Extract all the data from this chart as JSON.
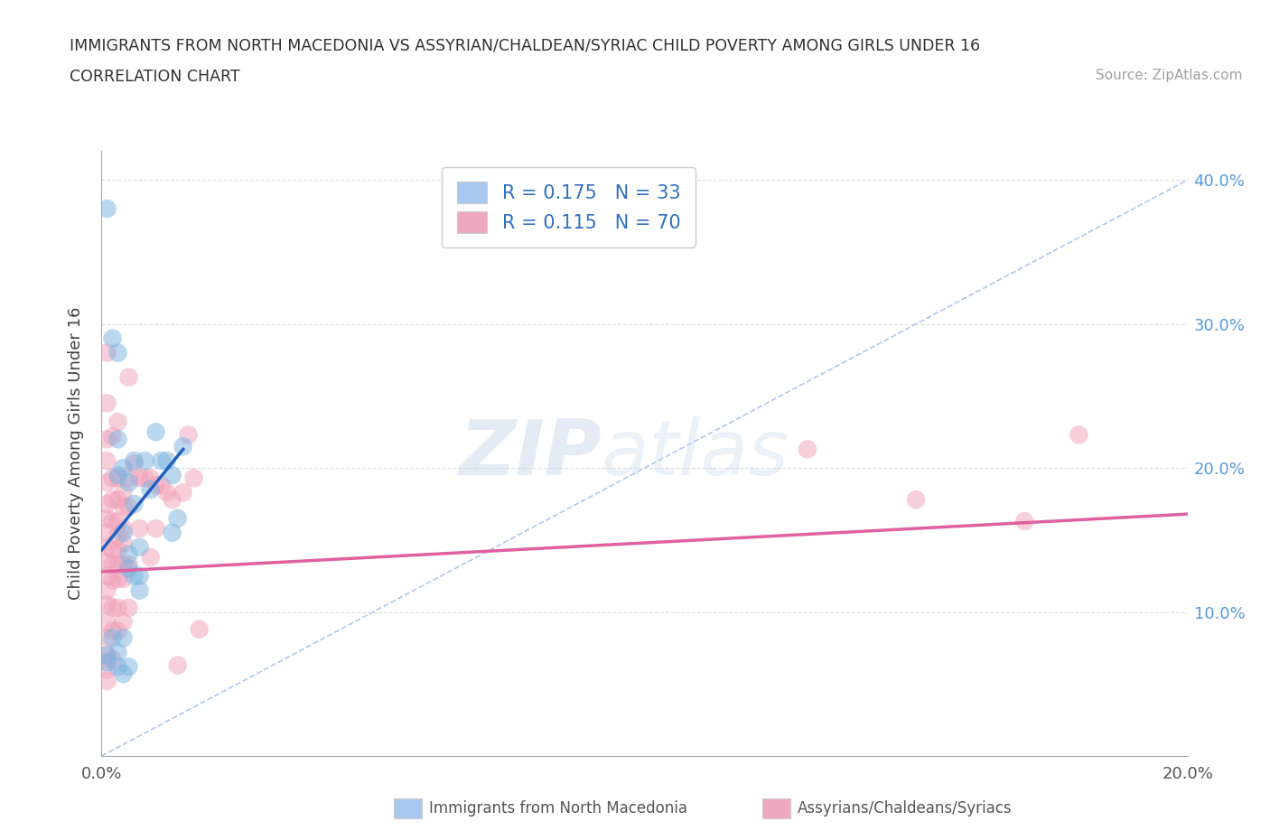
{
  "title": "IMMIGRANTS FROM NORTH MACEDONIA VS ASSYRIAN/CHALDEAN/SYRIAC CHILD POVERTY AMONG GIRLS UNDER 16",
  "subtitle": "CORRELATION CHART",
  "source": "Source: ZipAtlas.com",
  "ylabel": "Child Poverty Among Girls Under 16",
  "xlim": [
    0.0,
    0.2
  ],
  "ylim": [
    0.0,
    0.42
  ],
  "xticks": [
    0.0,
    0.025,
    0.05,
    0.075,
    0.1,
    0.125,
    0.15,
    0.175,
    0.2
  ],
  "xticklabels_show": [
    "0.0%",
    "",
    "",
    "",
    "",
    "",
    "",
    "",
    "20.0%"
  ],
  "yticks": [
    0.0,
    0.1,
    0.2,
    0.3,
    0.4
  ],
  "yticklabels_right": [
    "",
    "10.0%",
    "20.0%",
    "30.0%",
    "40.0%"
  ],
  "watermark_zip": "ZIP",
  "watermark_atlas": "atlas",
  "legend_items": [
    {
      "label": "R = 0.175   N = 33",
      "color": "#a8c8f0"
    },
    {
      "label": "R = 0.115   N = 70",
      "color": "#f0a8c0"
    }
  ],
  "blue_scatter": [
    [
      0.001,
      0.38
    ],
    [
      0.002,
      0.29
    ],
    [
      0.003,
      0.28
    ],
    [
      0.003,
      0.22
    ],
    [
      0.003,
      0.195
    ],
    [
      0.004,
      0.2
    ],
    [
      0.004,
      0.155
    ],
    [
      0.005,
      0.19
    ],
    [
      0.005,
      0.14
    ],
    [
      0.005,
      0.13
    ],
    [
      0.006,
      0.205
    ],
    [
      0.006,
      0.175
    ],
    [
      0.006,
      0.125
    ],
    [
      0.007,
      0.145
    ],
    [
      0.007,
      0.125
    ],
    [
      0.007,
      0.115
    ],
    [
      0.008,
      0.205
    ],
    [
      0.009,
      0.185
    ],
    [
      0.01,
      0.225
    ],
    [
      0.011,
      0.205
    ],
    [
      0.012,
      0.205
    ],
    [
      0.013,
      0.195
    ],
    [
      0.013,
      0.155
    ],
    [
      0.014,
      0.165
    ],
    [
      0.015,
      0.215
    ],
    [
      0.001,
      0.065
    ],
    [
      0.002,
      0.082
    ],
    [
      0.003,
      0.062
    ],
    [
      0.003,
      0.072
    ],
    [
      0.004,
      0.082
    ],
    [
      0.004,
      0.057
    ],
    [
      0.005,
      0.062
    ],
    [
      0.001,
      0.07
    ]
  ],
  "pink_scatter": [
    [
      0.001,
      0.28
    ],
    [
      0.001,
      0.245
    ],
    [
      0.001,
      0.22
    ],
    [
      0.001,
      0.205
    ],
    [
      0.001,
      0.19
    ],
    [
      0.001,
      0.175
    ],
    [
      0.001,
      0.165
    ],
    [
      0.001,
      0.155
    ],
    [
      0.001,
      0.145
    ],
    [
      0.001,
      0.135
    ],
    [
      0.001,
      0.125
    ],
    [
      0.001,
      0.115
    ],
    [
      0.001,
      0.105
    ],
    [
      0.001,
      0.093
    ],
    [
      0.001,
      0.082
    ],
    [
      0.001,
      0.07
    ],
    [
      0.001,
      0.06
    ],
    [
      0.001,
      0.052
    ],
    [
      0.002,
      0.222
    ],
    [
      0.002,
      0.193
    ],
    [
      0.002,
      0.178
    ],
    [
      0.002,
      0.163
    ],
    [
      0.002,
      0.143
    ],
    [
      0.002,
      0.133
    ],
    [
      0.002,
      0.122
    ],
    [
      0.002,
      0.103
    ],
    [
      0.002,
      0.087
    ],
    [
      0.002,
      0.067
    ],
    [
      0.003,
      0.232
    ],
    [
      0.003,
      0.193
    ],
    [
      0.003,
      0.178
    ],
    [
      0.003,
      0.163
    ],
    [
      0.003,
      0.153
    ],
    [
      0.003,
      0.143
    ],
    [
      0.003,
      0.133
    ],
    [
      0.003,
      0.123
    ],
    [
      0.003,
      0.103
    ],
    [
      0.003,
      0.087
    ],
    [
      0.004,
      0.183
    ],
    [
      0.004,
      0.173
    ],
    [
      0.004,
      0.158
    ],
    [
      0.004,
      0.148
    ],
    [
      0.004,
      0.133
    ],
    [
      0.004,
      0.123
    ],
    [
      0.004,
      0.093
    ],
    [
      0.005,
      0.263
    ],
    [
      0.005,
      0.193
    ],
    [
      0.005,
      0.173
    ],
    [
      0.005,
      0.133
    ],
    [
      0.005,
      0.103
    ],
    [
      0.006,
      0.203
    ],
    [
      0.007,
      0.193
    ],
    [
      0.007,
      0.158
    ],
    [
      0.008,
      0.193
    ],
    [
      0.009,
      0.193
    ],
    [
      0.009,
      0.138
    ],
    [
      0.01,
      0.188
    ],
    [
      0.01,
      0.158
    ],
    [
      0.011,
      0.188
    ],
    [
      0.012,
      0.183
    ],
    [
      0.013,
      0.178
    ],
    [
      0.014,
      0.063
    ],
    [
      0.015,
      0.183
    ],
    [
      0.016,
      0.223
    ],
    [
      0.017,
      0.193
    ],
    [
      0.018,
      0.088
    ],
    [
      0.13,
      0.213
    ],
    [
      0.15,
      0.178
    ],
    [
      0.17,
      0.163
    ],
    [
      0.18,
      0.223
    ]
  ],
  "blue_line_x": [
    0.0,
    0.015
  ],
  "blue_line_y": [
    0.143,
    0.213
  ],
  "pink_line_x": [
    0.0,
    0.2
  ],
  "pink_line_y": [
    0.128,
    0.168
  ],
  "diagonal_line_x": [
    0.0,
    0.2
  ],
  "diagonal_line_y": [
    0.0,
    0.4
  ],
  "scatter_color_blue": "#7ab3e0",
  "scatter_color_pink": "#f0a0b8",
  "line_color_blue": "#2060c0",
  "line_color_pink": "#e060a0",
  "diagonal_color": "#b0c8e8",
  "legend_box_color_blue": "#a8c8f0",
  "legend_box_color_pink": "#f0a8c0",
  "legend_text_color": "#3070c0",
  "grid_color": "#dddddd",
  "background_color": "#ffffff",
  "title_color": "#303030",
  "subtitle_color": "#303030",
  "source_color": "#a0a0a0",
  "ylabel_color": "#404040",
  "tick_label_color_right": "#5599dd",
  "bottom_legend_color": "#555555"
}
